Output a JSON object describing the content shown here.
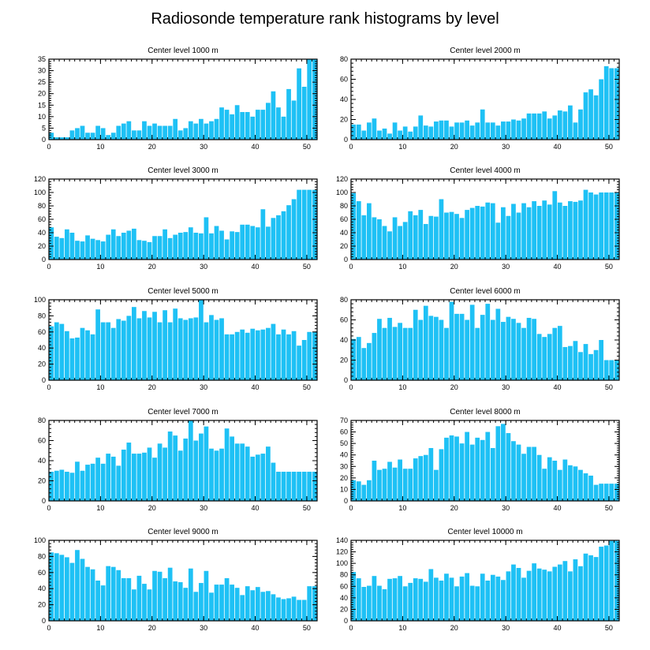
{
  "title": "Radiosonde temperature rank histograms by level",
  "bar_color": "#1ec1f5",
  "chart_data": [
    {
      "type": "bar",
      "title": "Center level 1000 m",
      "xlabel": "",
      "ylabel": "",
      "xlim": [
        0,
        52
      ],
      "ylim": [
        0,
        35
      ],
      "xticks": [
        0,
        10,
        20,
        30,
        40,
        50
      ],
      "yticks": [
        0,
        5,
        10,
        15,
        20,
        25,
        30,
        35
      ],
      "values": [
        3,
        1,
        1,
        1,
        4,
        5,
        6,
        3,
        3,
        6,
        5,
        2,
        3,
        6,
        7,
        8,
        4,
        4,
        8,
        6,
        7,
        6,
        6,
        6,
        9,
        4,
        5,
        8,
        7,
        9,
        7,
        8,
        9,
        14,
        13,
        11,
        15,
        12,
        12,
        10,
        13,
        13,
        16,
        21,
        14,
        10,
        22,
        17,
        31,
        23,
        35,
        35
      ]
    },
    {
      "type": "bar",
      "title": "Center level 2000 m",
      "xlabel": "",
      "ylabel": "",
      "xlim": [
        0,
        52
      ],
      "ylim": [
        0,
        80
      ],
      "xticks": [
        0,
        10,
        20,
        30,
        40,
        50
      ],
      "yticks": [
        0,
        20,
        40,
        60,
        80
      ],
      "values": [
        15,
        15,
        9,
        17,
        21,
        9,
        11,
        6,
        17,
        9,
        13,
        8,
        13,
        24,
        14,
        13,
        18,
        19,
        19,
        13,
        17,
        17,
        19,
        14,
        17,
        30,
        17,
        17,
        14,
        18,
        18,
        20,
        19,
        21,
        26,
        26,
        26,
        28,
        21,
        24,
        29,
        28,
        34,
        17,
        30,
        47,
        50,
        44,
        60,
        73,
        71,
        71
      ]
    },
    {
      "type": "bar",
      "title": "Center level 3000 m",
      "xlabel": "",
      "ylabel": "",
      "xlim": [
        0,
        52
      ],
      "ylim": [
        0,
        120
      ],
      "xticks": [
        0,
        10,
        20,
        30,
        40,
        50
      ],
      "yticks": [
        0,
        20,
        40,
        60,
        80,
        100,
        120
      ],
      "values": [
        48,
        34,
        32,
        45,
        40,
        28,
        27,
        36,
        31,
        29,
        27,
        37,
        45,
        35,
        40,
        43,
        46,
        29,
        28,
        26,
        35,
        35,
        45,
        32,
        37,
        40,
        41,
        48,
        40,
        39,
        63,
        39,
        50,
        43,
        30,
        42,
        41,
        52,
        52,
        50,
        48,
        75,
        49,
        62,
        66,
        72,
        81,
        90,
        104,
        104,
        104,
        104
      ]
    },
    {
      "type": "bar",
      "title": "Center level 4000 m",
      "xlabel": "",
      "ylabel": "",
      "xlim": [
        0,
        52
      ],
      "ylim": [
        0,
        120
      ],
      "xticks": [
        0,
        10,
        20,
        30,
        40,
        50
      ],
      "yticks": [
        0,
        20,
        40,
        60,
        80,
        100,
        120
      ],
      "values": [
        99,
        87,
        66,
        84,
        63,
        60,
        50,
        42,
        63,
        50,
        56,
        72,
        66,
        74,
        53,
        65,
        64,
        90,
        70,
        71,
        68,
        62,
        74,
        77,
        80,
        79,
        85,
        84,
        55,
        78,
        65,
        83,
        70,
        84,
        78,
        87,
        80,
        88,
        82,
        102,
        85,
        80,
        87,
        86,
        88,
        104,
        100,
        97,
        100,
        100,
        100,
        100
      ]
    },
    {
      "type": "bar",
      "title": "Center level 5000 m",
      "xlabel": "",
      "ylabel": "",
      "xlim": [
        0,
        52
      ],
      "ylim": [
        0,
        100
      ],
      "xticks": [
        0,
        10,
        20,
        30,
        40,
        50
      ],
      "yticks": [
        0,
        20,
        40,
        60,
        80,
        100
      ],
      "values": [
        67,
        72,
        70,
        61,
        52,
        53,
        65,
        62,
        57,
        88,
        72,
        72,
        65,
        76,
        74,
        80,
        91,
        77,
        86,
        78,
        85,
        72,
        87,
        72,
        89,
        77,
        75,
        77,
        78,
        100,
        72,
        81,
        75,
        77,
        57,
        57,
        60,
        63,
        59,
        64,
        62,
        63,
        65,
        70,
        57,
        63,
        57,
        61,
        43,
        50,
        60,
        60
      ]
    },
    {
      "type": "bar",
      "title": "Center level 6000 m",
      "xlabel": "",
      "ylabel": "",
      "xlim": [
        0,
        52
      ],
      "ylim": [
        0,
        80
      ],
      "xticks": [
        0,
        10,
        20,
        30,
        40,
        50
      ],
      "yticks": [
        0,
        20,
        40,
        60,
        80
      ],
      "values": [
        41,
        43,
        32,
        37,
        47,
        61,
        52,
        62,
        53,
        57,
        52,
        52,
        70,
        60,
        74,
        64,
        63,
        60,
        52,
        78,
        66,
        66,
        60,
        75,
        52,
        65,
        76,
        60,
        71,
        58,
        63,
        61,
        57,
        52,
        62,
        61,
        46,
        43,
        46,
        52,
        54,
        33,
        34,
        39,
        28,
        36,
        26,
        30,
        40,
        20,
        20,
        20
      ]
    },
    {
      "type": "bar",
      "title": "Center level 7000 m",
      "xlabel": "",
      "ylabel": "",
      "xlim": [
        0,
        52
      ],
      "ylim": [
        0,
        80
      ],
      "xticks": [
        0,
        10,
        20,
        30,
        40,
        50
      ],
      "yticks": [
        0,
        20,
        40,
        60,
        80
      ],
      "values": [
        29,
        30,
        31,
        29,
        28,
        39,
        30,
        36,
        37,
        43,
        37,
        47,
        44,
        35,
        51,
        58,
        47,
        47,
        48,
        53,
        43,
        57,
        53,
        69,
        65,
        50,
        62,
        80,
        60,
        67,
        74,
        52,
        50,
        52,
        72,
        64,
        57,
        57,
        54,
        44,
        46,
        47,
        54,
        38,
        29,
        29,
        29,
        29,
        29,
        29,
        29,
        29
      ]
    },
    {
      "type": "bar",
      "title": "Center level 8000 m",
      "xlabel": "",
      "ylabel": "",
      "xlim": [
        0,
        52
      ],
      "ylim": [
        0,
        70
      ],
      "xticks": [
        0,
        10,
        20,
        30,
        40,
        50
      ],
      "yticks": [
        0,
        10,
        20,
        30,
        40,
        50,
        60,
        70
      ],
      "values": [
        18,
        17,
        14,
        18,
        35,
        27,
        28,
        34,
        29,
        36,
        28,
        28,
        37,
        39,
        40,
        46,
        27,
        45,
        55,
        57,
        56,
        50,
        60,
        49,
        55,
        53,
        60,
        46,
        65,
        67,
        59,
        52,
        49,
        41,
        47,
        47,
        40,
        28,
        38,
        35,
        27,
        36,
        31,
        30,
        27,
        24,
        22,
        14,
        15,
        15,
        15,
        15
      ]
    },
    {
      "type": "bar",
      "title": "Center level 9000 m",
      "xlabel": "",
      "ylabel": "",
      "xlim": [
        0,
        52
      ],
      "ylim": [
        0,
        100
      ],
      "xticks": [
        0,
        10,
        20,
        30,
        40,
        50
      ],
      "yticks": [
        0,
        20,
        40,
        60,
        80,
        100
      ],
      "values": [
        85,
        84,
        82,
        79,
        72,
        88,
        77,
        67,
        64,
        50,
        44,
        68,
        67,
        63,
        53,
        53,
        39,
        56,
        46,
        39,
        62,
        61,
        53,
        66,
        49,
        48,
        41,
        65,
        36,
        47,
        62,
        35,
        45,
        45,
        53,
        45,
        41,
        32,
        43,
        38,
        42,
        36,
        37,
        33,
        29,
        27,
        28,
        30,
        26,
        26,
        43,
        43
      ]
    },
    {
      "type": "bar",
      "title": "Center level 10000 m",
      "xlabel": "",
      "ylabel": "",
      "xlim": [
        0,
        52
      ],
      "ylim": [
        0,
        140
      ],
      "xticks": [
        0,
        10,
        20,
        30,
        40,
        50
      ],
      "yticks": [
        0,
        20,
        40,
        60,
        80,
        100,
        120,
        140
      ],
      "values": [
        85,
        74,
        59,
        61,
        78,
        61,
        55,
        73,
        74,
        78,
        60,
        66,
        74,
        73,
        68,
        90,
        75,
        70,
        82,
        75,
        60,
        77,
        83,
        61,
        60,
        82,
        70,
        80,
        77,
        71,
        86,
        98,
        92,
        75,
        87,
        100,
        91,
        89,
        86,
        94,
        98,
        104,
        86,
        107,
        95,
        117,
        114,
        111,
        129,
        131,
        139,
        139
      ]
    }
  ]
}
